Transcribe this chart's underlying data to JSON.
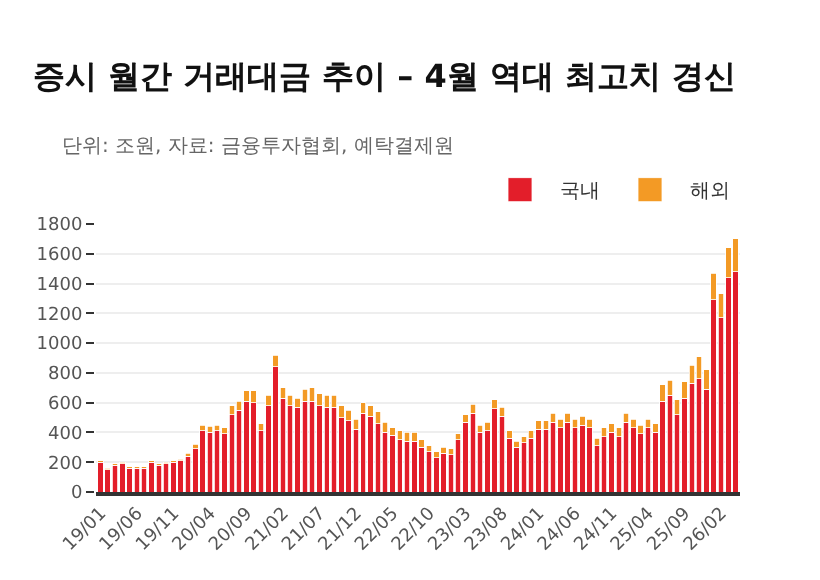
{
  "chart_data": {
    "type": "bar",
    "title": "증시 월간 거래대금 추이 – 4월 역대 최고치 경신",
    "annotations": [
      "단위: 조원, 자료: 금융투자협회, 예탁결제원"
    ],
    "categories": [
      "19/01",
      null,
      null,
      null,
      null,
      "19/06",
      null,
      null,
      null,
      null,
      "19/11",
      null,
      null,
      null,
      null,
      "20/04",
      null,
      null,
      null,
      null,
      "20/09",
      null,
      null,
      null,
      null,
      "21/02",
      null,
      null,
      null,
      null,
      "21/07",
      null,
      null,
      null,
      null,
      "21/12",
      null,
      null,
      null,
      null,
      "22/05",
      null,
      null,
      null,
      null,
      "22/10",
      null,
      null,
      null,
      null,
      "23/03",
      null,
      null,
      null,
      null,
      "23/08",
      null,
      null,
      null,
      null,
      "24/01",
      null,
      null,
      null,
      null,
      "24/06",
      null,
      null,
      null,
      null,
      "24/11",
      null,
      null,
      null,
      null,
      "25/04",
      null,
      null,
      null,
      null,
      "25/09",
      null,
      null,
      null,
      null,
      "26/02",
      null,
      null
    ],
    "stacked": true,
    "ylim": [
      0,
      1800
    ],
    "yticks": [
      0,
      200,
      400,
      600,
      800,
      1000,
      1200,
      1400,
      1600,
      1800
    ],
    "grid": "y",
    "legend": "top right",
    "series": [
      {
        "name": "국내",
        "color": "#e31e2a",
        "values": [
          200,
          150,
          180,
          190,
          160,
          160,
          160,
          200,
          180,
          190,
          200,
          210,
          240,
          290,
          410,
          400,
          410,
          390,
          520,
          550,
          610,
          600,
          410,
          580,
          840,
          630,
          580,
          570,
          610,
          610,
          580,
          570,
          570,
          500,
          480,
          420,
          530,
          510,
          460,
          400,
          380,
          350,
          340,
          340,
          300,
          270,
          230,
          260,
          250,
          350,
          470,
          530,
          400,
          410,
          560,
          510,
          360,
          300,
          330,
          360,
          420,
          420,
          470,
          430,
          470,
          430,
          450,
          430,
          310,
          370,
          400,
          370,
          470,
          430,
          390,
          430,
          400,
          610,
          650,
          520,
          630,
          730,
          760,
          690,
          1290,
          1170,
          1440,
          1480
        ]
      },
      {
        "name": "해외",
        "color": "#f39a25",
        "values": [
          10,
          10,
          10,
          10,
          10,
          10,
          10,
          10,
          10,
          10,
          10,
          10,
          20,
          30,
          40,
          40,
          40,
          40,
          60,
          60,
          70,
          80,
          50,
          70,
          80,
          70,
          70,
          60,
          80,
          90,
          80,
          80,
          80,
          80,
          70,
          70,
          70,
          70,
          80,
          70,
          50,
          60,
          60,
          60,
          50,
          40,
          40,
          40,
          40,
          40,
          50,
          60,
          50,
          60,
          60,
          60,
          50,
          40,
          40,
          50,
          60,
          60,
          60,
          60,
          60,
          60,
          60,
          60,
          50,
          60,
          60,
          60,
          60,
          60,
          60,
          60,
          60,
          110,
          100,
          100,
          110,
          120,
          150,
          130,
          180,
          160,
          200,
          220
        ]
      }
    ]
  }
}
